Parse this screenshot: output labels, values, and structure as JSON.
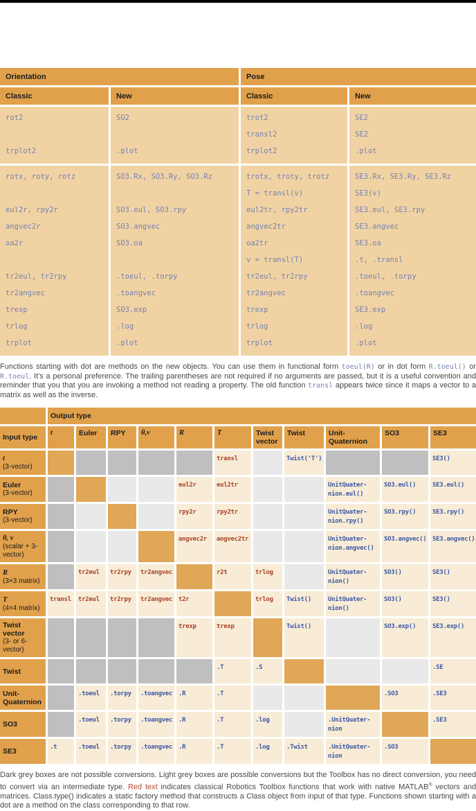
{
  "colors": {
    "header_orange": "#e1a14c",
    "diagonal_orange": "#e0a757",
    "table1_cell_tan": "#f1d3a3",
    "matrix_cell_cream": "#f8ecd6",
    "not_possible_grey": "#bfbfbf",
    "indirect_grey": "#e9e9e9",
    "classic_code_slate": "#7581b2",
    "red_function_text": "#a84327",
    "blue_method_text": "#3d57a6"
  },
  "conversion_table": {
    "group_headers": [
      "Orientation",
      "Pose"
    ],
    "col_headers": [
      "Classic",
      "New",
      "Classic",
      "New"
    ],
    "blocks": [
      {
        "cols": [
          [
            "rot2",
            "",
            "trplot2"
          ],
          [
            "SO2",
            "",
            ".plot"
          ],
          [
            "trot2",
            "transl2",
            "trplot2"
          ],
          [
            "SE2",
            "SE2",
            ".plot"
          ]
        ]
      },
      {
        "cols": [
          [
            "rotx, roty, rotz",
            "",
            "eul2r, rpy2r",
            "angvec2r",
            "oa2r",
            "",
            "tr2eul, tr2rpy",
            "tr2angvec",
            "trexp",
            "trlog",
            "trplot"
          ],
          [
            "SO3.Rx, SO3.Ry, SO3.Rz",
            "",
            "SO3.eul, SO3.rpy",
            "SO3.angvec",
            "SO3.oa",
            "",
            ".toeul, .torpy",
            ".toangvec",
            "SO3.exp",
            ".log",
            ".plot"
          ],
          [
            "trotx, troty, trotz",
            "T = transl(v)",
            "eul2tr, rpy2tr",
            "angvec2tr",
            "oa2tr",
            "v = transl(T)",
            "tr2eul, tr2rpy",
            "tr2angvec",
            "trexp",
            "trlog",
            "trplot"
          ],
          [
            "SE3.Rx, SE3.Ry, SE3.Rz",
            "SE3(v)",
            "SE3.eul, SE3.rpy",
            "SE3.angvec",
            "SE3.oa",
            ".t, .transl",
            ".toeul, .torpy",
            ".toangvec",
            "SE3.exp",
            ".log",
            ".plot"
          ]
        ]
      }
    ]
  },
  "paragraph1": {
    "segments": [
      {
        "t": "Functions starting with dot are methods on the new objects. You can use them in functional form "
      },
      {
        "t": "toeul(R)",
        "s": "code"
      },
      {
        "t": " or in dot form "
      },
      {
        "t": "R.toeul()",
        "s": "code"
      },
      {
        "t": " or "
      },
      {
        "t": "R.toeul",
        "s": "code"
      },
      {
        "t": ". It’s a personal preference. The trailing parentheses are not required if no arguments are passed, but it is a useful convention and reminder that you that you are invoking a method not reading a property. The old function "
      },
      {
        "t": "transl",
        "s": "code"
      },
      {
        "t": " appears twice since it maps a vector to a matrix as well as the inverse."
      }
    ]
  },
  "matrix": {
    "output_type_label": "Output type",
    "input_type_label": "Input type",
    "legend": {
      "dark": "not possible conversion",
      "light": "possible but no direct conversion",
      "diag": "same type"
    },
    "col_headers": [
      {
        "label": "t",
        "italic": true
      },
      {
        "label": "Euler"
      },
      {
        "label": "RPY"
      },
      {
        "label": "θ,v",
        "italic": true
      },
      {
        "label": "R",
        "italic": true
      },
      {
        "label": "T",
        "italic": true
      },
      {
        "label": "Twist vector"
      },
      {
        "label": "Twist"
      },
      {
        "label": "Unit-Quaternion"
      },
      {
        "label": "SO3"
      },
      {
        "label": "SE3"
      }
    ],
    "rows": [
      {
        "header": {
          "main": "t",
          "sub": "(3-vector)",
          "italic": true
        },
        "cells": [
          "!diag",
          "!dark",
          "!dark",
          "!dark",
          "!dark",
          "r:transl",
          "!light",
          "b:Twist('T')",
          "!dark",
          "!dark",
          "b:SE3()"
        ]
      },
      {
        "header": {
          "main": "Euler",
          "sub": "(3-vector)"
        },
        "cells": [
          "!dark",
          "!diag",
          "!light",
          "!light",
          "r:eul2r",
          "r:eul2tr",
          "!light",
          "!light",
          "b:UnitQuater-\nnion.eul()",
          "b:SO3.eul()",
          "b:SE3.eul()"
        ]
      },
      {
        "header": {
          "main": "RPY",
          "sub": "(3-vector)"
        },
        "cells": [
          "!dark",
          "!light",
          "!diag",
          "!light",
          "r:rpy2r",
          "r:rpy2tr",
          "!light",
          "!light",
          "b:UnitQuater-\nnion.rpy()",
          "b:SO3.rpy()",
          "b:SE3.rpy()"
        ]
      },
      {
        "header": {
          "main": "θ, v",
          "sub": "(scalar + 3-vector)",
          "italic": true
        },
        "cells": [
          "!dark",
          "!light",
          "!light",
          "!diag",
          "r:angvec2r",
          "r:angvec2tr",
          "!light",
          "!light",
          "b:UnitQuater-\nnion.angvec()",
          "b:SO3.angvec()",
          "b:SE3.angvec()"
        ]
      },
      {
        "header": {
          "main": "R",
          "sub": "(3×3 matrix)",
          "italic": true
        },
        "cells": [
          "!dark",
          "r:tr2eul",
          "r:tr2rpy",
          "r:tr2angvec",
          "!diag",
          "r:r2t",
          "r:trlog",
          "!light",
          "b:UnitQuater-\nnion()",
          "b:SO3()",
          "b:SE3()"
        ]
      },
      {
        "header": {
          "main": "T",
          "sub": "(4×4 matrix)",
          "italic": true
        },
        "cells": [
          "r:transl",
          "r:tr2eul",
          "r:tr2rpy",
          "r:tr2angvec",
          "r:t2r",
          "!diag",
          "r:trlog",
          "b:Twist()",
          "b:UnitQuater-\nnion()",
          "b:SO3()",
          "b:SE3()"
        ]
      },
      {
        "header": {
          "main": "Twist vector",
          "sub": "(3- or 6-vector)"
        },
        "cells": [
          "!dark",
          "!dark",
          "!dark",
          "!dark",
          "r:trexp",
          "r:trexp",
          "!diag",
          "b:Twist()",
          "!light",
          "b:SO3.exp()",
          "b:SE3.exp()"
        ]
      },
      {
        "header": {
          "main": "Twist",
          "sub": ""
        },
        "cells": [
          "!dark",
          "!dark",
          "!dark",
          "!dark",
          "!dark",
          "b:.T",
          "b:.S",
          "!diag",
          "!light",
          "!light",
          "b:.SE"
        ]
      },
      {
        "header": {
          "main": "Unit-Quaternion",
          "sub": ""
        },
        "cells": [
          "!dark",
          "b:.toeul",
          "b:.torpy",
          "b:.toangvec",
          "b:.R",
          "b:.T",
          "!light",
          "!light",
          "!diag",
          "b:.SO3",
          "b:.SE3"
        ]
      },
      {
        "header": {
          "main": "SO3",
          "sub": ""
        },
        "cells": [
          "!dark",
          "b:.toeul",
          "b:.torpy",
          "b:.toangvec",
          "b:.R",
          "b:.T",
          "b:.log",
          "!light",
          "b:.UnitQuater-\nnion",
          "!diag",
          "b:.SE3"
        ]
      },
      {
        "header": {
          "main": "SE3",
          "sub": ""
        },
        "cells": [
          "b:.t",
          "b:.toeul",
          "b:.torpy",
          "b:.toangvec",
          "b:.R",
          "b:.T",
          "b:.log",
          "b:.Twist",
          "b:.UnitQuater-\nnion",
          "b:.SO3",
          "!diag"
        ]
      }
    ]
  },
  "paragraph2": {
    "segments": [
      {
        "t": "Dark grey boxes are not possible conversions. Light grey boxes are possible conversions but the Toolbox has no direct conversion, you need to convert via an intermediate type. "
      },
      {
        "t": "Red text",
        "s": "red"
      },
      {
        "t": " indicates classical Robotics Toolbox functions that work with native MATLAB"
      },
      {
        "t": "®",
        "s": "sup"
      },
      {
        "t": " vectors and matrices. Class.type() indicates a static factory method that constructs a Class object from input of that type. Functions shown starting with a dot are a method on the class corresponding to that row."
      }
    ]
  }
}
